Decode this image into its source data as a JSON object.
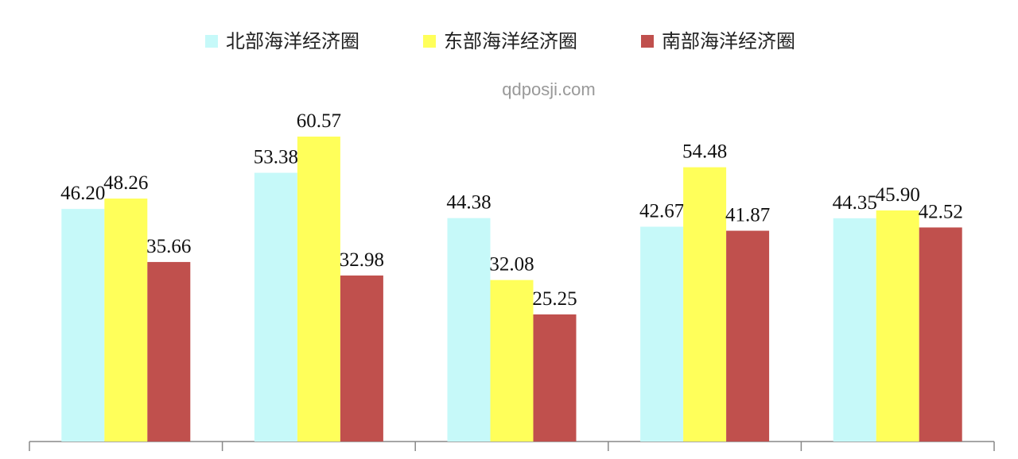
{
  "chart_data": {
    "type": "bar",
    "watermark": "qdposji.com",
    "categories": [
      null,
      null,
      null,
      null,
      null
    ],
    "series": [
      {
        "name": "北部海洋经济圈",
        "color": "#c6f9f9",
        "values": [
          46.2,
          53.38,
          44.38,
          42.67,
          44.35
        ],
        "value_labels": [
          "46.20",
          "53.38",
          "44.38",
          "42.67",
          "44.35"
        ]
      },
      {
        "name": "东部海洋经济圈",
        "color": "#ffff5a",
        "values": [
          48.26,
          60.57,
          32.08,
          54.48,
          45.9
        ],
        "value_labels": [
          "48.26",
          "60.57",
          "32.08",
          "54.48",
          "45.90"
        ]
      },
      {
        "name": "南部海洋经济圈",
        "color": "#c0504d",
        "values": [
          35.66,
          32.98,
          25.25,
          41.87,
          42.52
        ],
        "value_labels": [
          "35.66",
          "32.98",
          "25.25",
          "41.87",
          "42.52"
        ]
      }
    ],
    "legend": "top"
  }
}
